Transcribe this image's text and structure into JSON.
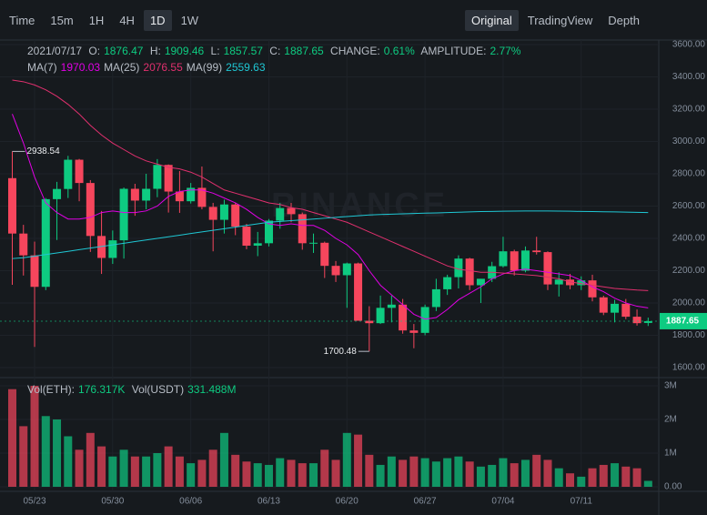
{
  "toolbar": {
    "intervals": [
      "Time",
      "15m",
      "1H",
      "4H",
      "1D",
      "1W"
    ],
    "active": "1D",
    "views": [
      "Original",
      "TradingView",
      "Depth"
    ],
    "active_view": "Original"
  },
  "info": {
    "date": "2021/07/17",
    "o": "O:",
    "h": "H:",
    "l": "L:",
    "c": "C:",
    "change": "CHANGE:",
    "change_value": "0.61%",
    "amplitude": "AMPLITUDE:",
    "amplitude_value": "2.77%",
    "vol_eth": "Vol(ETH):",
    "vol_eth_value": "176.317K",
    "vol_usdt": "Vol(USDT)",
    "vol_usdt_value": "331.488M",
    "watermark": "BINANCE"
  },
  "chart_data": {
    "type": "candlestick",
    "categories": [
      null,
      null,
      "05/23",
      null,
      null,
      null,
      null,
      null,
      null,
      "05/30",
      null,
      null,
      null,
      null,
      null,
      null,
      "06/06",
      null,
      null,
      null,
      null,
      null,
      null,
      "06/13",
      null,
      null,
      null,
      null,
      null,
      null,
      "06/20",
      null,
      null,
      null,
      null,
      null,
      null,
      "06/27",
      null,
      null,
      null,
      null,
      null,
      null,
      "07/04",
      null,
      null,
      null,
      null,
      null,
      null,
      "07/11",
      null,
      null,
      null,
      null,
      null,
      null
    ],
    "open": [
      2773,
      2430,
      2295,
      2100,
      2643,
      2706,
      2887,
      2743,
      2415,
      2279,
      2388,
      2707,
      2634,
      2707,
      2855,
      2690,
      2630,
      2713,
      2595,
      2515,
      2610,
      2473,
      2355,
      2370,
      2510,
      2588,
      2550,
      2370,
      2373,
      2230,
      2172,
      2245,
      1890,
      1875,
      1970,
      1990,
      1830,
      1815,
      1975,
      2085,
      2160,
      2275,
      2110,
      2150,
      2228,
      2320,
      2200,
      2325,
      2315,
      2115,
      2145,
      2110,
      2140,
      2035,
      1940,
      1995,
      1915,
      1876.47
    ],
    "high": [
      2938.54,
      2484,
      2380,
      2650,
      2750,
      2911,
      2892,
      2761,
      2570,
      2449,
      2715,
      2738,
      2800,
      2891,
      2858,
      2817,
      2743,
      2845,
      2620,
      2640,
      2620,
      2490,
      2440,
      2520,
      2620,
      2620,
      2560,
      2430,
      2380,
      2260,
      2250,
      2250,
      1980,
      2046,
      2045,
      2025,
      1870,
      1990,
      2150,
      2175,
      2295,
      2280,
      2150,
      2255,
      2410,
      2330,
      2350,
      2410,
      2320,
      2190,
      2180,
      2165,
      2175,
      2045,
      2020,
      2025,
      1960,
      1909.46
    ],
    "low": [
      2113,
      2170,
      1728,
      2080,
      2390,
      2650,
      2630,
      2316,
      2180,
      2242,
      2275,
      2540,
      2580,
      2655,
      2560,
      2558,
      2616,
      2580,
      2320,
      2430,
      2420,
      2333,
      2290,
      2350,
      2460,
      2500,
      2330,
      2310,
      2155,
      2130,
      1970,
      1890,
      1700.48,
      1870,
      1880,
      1810,
      1720,
      1800,
      1950,
      2050,
      2090,
      2080,
      2000,
      2130,
      2220,
      2170,
      2190,
      2300,
      2080,
      2040,
      2085,
      2080,
      2010,
      1925,
      1880,
      1900,
      1860,
      1857.57
    ],
    "close": [
      2430,
      2295,
      2100,
      2643,
      2706,
      2887,
      2743,
      2415,
      2279,
      2388,
      2707,
      2634,
      2707,
      2855,
      2690,
      2630,
      2713,
      2595,
      2515,
      2610,
      2473,
      2355,
      2370,
      2510,
      2588,
      2550,
      2370,
      2373,
      2230,
      2172,
      2245,
      1890,
      1875,
      1970,
      1990,
      1830,
      1815,
      1975,
      2085,
      2160,
      2275,
      2110,
      2150,
      2228,
      2320,
      2200,
      2325,
      2315,
      2115,
      2145,
      2110,
      2140,
      2035,
      1940,
      1995,
      1915,
      1875,
      1887.65
    ],
    "up_color": "#0ecb81",
    "down_color": "#f6465d",
    "ma": [
      {
        "name": "MA(7)",
        "color": "#e100e5",
        "values": [
          3170,
          2990,
          2780,
          2620,
          2560,
          2520,
          2520,
          2530,
          2560,
          2570,
          2560,
          2560,
          2570,
          2600,
          2660,
          2690,
          2700,
          2700,
          2680,
          2650,
          2620,
          2580,
          2530,
          2490,
          2480,
          2490,
          2480,
          2480,
          2450,
          2400,
          2360,
          2300,
          2200,
          2110,
          2050,
          1990,
          1930,
          1900,
          1910,
          1960,
          2020,
          2060,
          2100,
          2150,
          2180,
          2200,
          2210,
          2200,
          2190,
          2180,
          2170,
          2140,
          2100,
          2070,
          2030,
          2000,
          1980,
          1970.03
        ]
      },
      {
        "name": "MA(25)",
        "color": "#e0306e",
        "values": [
          3380,
          3370,
          3350,
          3320,
          3280,
          3230,
          3170,
          3100,
          3040,
          2990,
          2950,
          2910,
          2880,
          2860,
          2840,
          2830,
          2810,
          2780,
          2740,
          2700,
          2680,
          2660,
          2640,
          2620,
          2610,
          2590,
          2580,
          2560,
          2540,
          2520,
          2500,
          2470,
          2440,
          2410,
          2380,
          2350,
          2320,
          2290,
          2260,
          2230,
          2210,
          2200,
          2190,
          2190,
          2185,
          2180,
          2175,
          2170,
          2160,
          2150,
          2130,
          2120,
          2110,
          2100,
          2090,
          2085,
          2080,
          2076.55
        ]
      },
      {
        "name": "MA(99)",
        "color": "#1fc7d4",
        "values": [
          2275,
          2280,
          2290,
          2300,
          2310,
          2320,
          2330,
          2340,
          2350,
          2360,
          2370,
          2380,
          2390,
          2400,
          2410,
          2420,
          2430,
          2440,
          2450,
          2460,
          2470,
          2480,
          2490,
          2500,
          2505,
          2510,
          2515,
          2520,
          2525,
          2530,
          2535,
          2540,
          2545,
          2548,
          2550,
          2552,
          2554,
          2556,
          2558,
          2560,
          2562,
          2564,
          2566,
          2567,
          2568,
          2569,
          2570,
          2570,
          2570,
          2569,
          2568,
          2567,
          2566,
          2565,
          2564,
          2563,
          2561,
          2559.63
        ]
      }
    ],
    "ylim": [
      1600,
      3600
    ],
    "yticks": [
      {
        "value": 1600,
        "label": "1600.00"
      },
      {
        "value": 1800,
        "label": "1800.00"
      },
      {
        "value": 2000,
        "label": "2000.00"
      },
      {
        "value": 2200,
        "label": "2200.00"
      },
      {
        "value": 2400,
        "label": "2400.00"
      },
      {
        "value": 2600,
        "label": "2600.00"
      },
      {
        "value": 2800,
        "label": "2800.00"
      },
      {
        "value": 3000,
        "label": "3000.00"
      },
      {
        "value": 3200,
        "label": "3200.00"
      },
      {
        "value": 3400,
        "label": "3400.00"
      },
      {
        "value": 3600,
        "label": "3600.00"
      }
    ],
    "volume": [
      2900000,
      1800000,
      3000000,
      2100000,
      2000000,
      1500000,
      1100000,
      1600000,
      1200000,
      900000,
      1100000,
      900000,
      900000,
      1000000,
      1200000,
      900000,
      700000,
      800000,
      1100000,
      1600000,
      950000,
      750000,
      700000,
      650000,
      850000,
      800000,
      700000,
      700000,
      1100000,
      800000,
      1600000,
      1550000,
      950000,
      650000,
      900000,
      800000,
      900000,
      850000,
      750000,
      850000,
      900000,
      750000,
      600000,
      650000,
      850000,
      700000,
      800000,
      950000,
      800000,
      550000,
      400000,
      300000,
      550000,
      650000,
      700000,
      600000,
      550000,
      176317
    ],
    "vlim": [
      0,
      3000000
    ],
    "vticks": [
      {
        "value": 0,
        "label": "0.00"
      },
      {
        "value": 1000000,
        "label": "1M"
      },
      {
        "value": 2000000,
        "label": "2M"
      },
      {
        "value": 3000000,
        "label": "3M"
      }
    ]
  }
}
